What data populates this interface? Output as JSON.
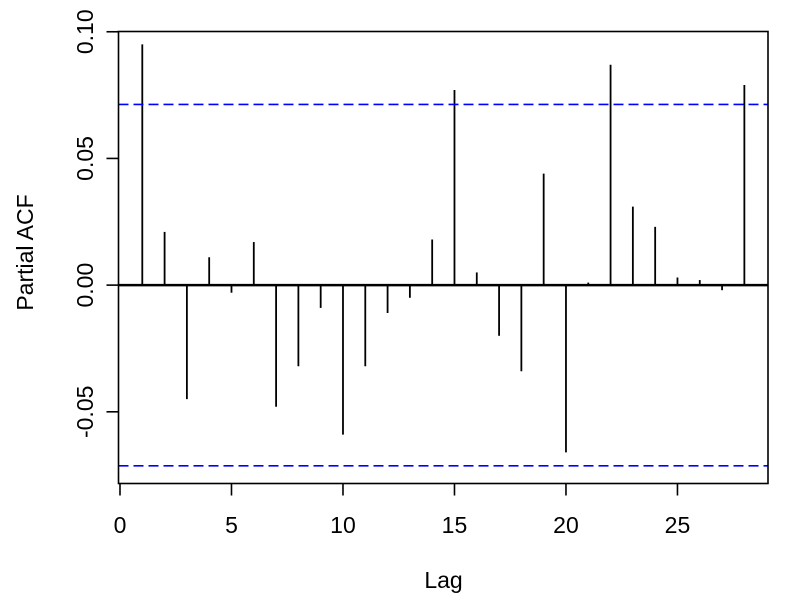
{
  "chart_data": {
    "type": "bar",
    "subtype": "stem-pacf",
    "title": "",
    "xlabel": "Lag",
    "ylabel": "Partial ACF",
    "lags": [
      1,
      2,
      3,
      4,
      5,
      6,
      7,
      8,
      9,
      10,
      11,
      12,
      13,
      14,
      15,
      16,
      17,
      18,
      19,
      20,
      21,
      22,
      23,
      24,
      25,
      26,
      27,
      28
    ],
    "values": [
      0.095,
      0.021,
      -0.045,
      0.011,
      -0.003,
      0.017,
      -0.048,
      -0.032,
      -0.009,
      -0.059,
      -0.032,
      -0.011,
      -0.005,
      0.018,
      0.077,
      0.005,
      -0.02,
      -0.034,
      0.044,
      -0.066,
      0.001,
      0.087,
      0.031,
      0.023,
      0.003,
      0.002,
      -0.002,
      0.079
    ],
    "confidence_bounds": {
      "upper": 0.0713,
      "lower": -0.0713,
      "line_style": "dashed",
      "color": "#0000FF"
    },
    "xticks": [
      0,
      5,
      10,
      15,
      20,
      25
    ],
    "yticks": [
      {
        "value": 0.1,
        "label": "0.10"
      },
      {
        "value": 0.05,
        "label": "0.05"
      },
      {
        "value": 0.0,
        "label": "0.00"
      },
      {
        "value": -0.05,
        "label": "-0.05"
      }
    ],
    "xlim": [
      -0.067,
      29.06
    ],
    "ylim": [
      -0.0783,
      0.1001
    ],
    "grid": "off",
    "legend": "none",
    "colors": {
      "spike": "#000000",
      "axis": "#000000",
      "ci_line": "#0000FF",
      "background": "#FFFFFF"
    }
  }
}
